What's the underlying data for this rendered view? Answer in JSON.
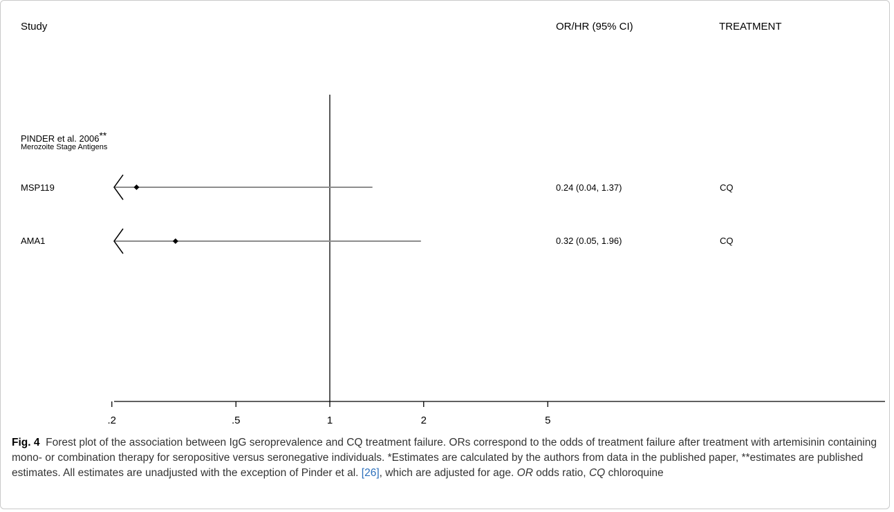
{
  "headers": {
    "study": "Study",
    "estimate": "OR/HR (95% CI)",
    "treatment": "TREATMENT"
  },
  "study_group": {
    "name": "PINDER et al. 2006",
    "mark": "**",
    "subtitle": "Merozoite Stage Antigens"
  },
  "rows": [
    {
      "label": "MSP119",
      "estimate_text": "0.24 (0.04, 1.37)",
      "treatment": "CQ"
    },
    {
      "label": "AMA1",
      "estimate_text": "0.32 (0.05, 1.96)",
      "treatment": "CQ"
    }
  ],
  "chart_data": {
    "type": "forest",
    "x_scale": "log",
    "xticks": [
      0.2,
      0.5,
      1,
      2,
      5
    ],
    "xtick_labels": [
      ".2",
      ".5",
      "1",
      "2",
      "5"
    ],
    "reference_line": 1,
    "series": [
      {
        "label": "MSP119",
        "estimate": 0.24,
        "ci_low": 0.04,
        "ci_high": 1.37,
        "lower_truncated": true
      },
      {
        "label": "AMA1",
        "estimate": 0.32,
        "ci_low": 0.05,
        "ci_high": 1.96,
        "lower_truncated": true
      }
    ],
    "line_color": "#8c8c8c",
    "axis_color": "#000000"
  },
  "caption": {
    "fig_label": "Fig. 4",
    "part1": "Forest plot of the association between IgG seroprevalence and CQ treatment failure. ORs correspond to the odds of treatment failure after treatment with artemisinin containing mono- or combination therapy for seropositive versus seronegative individuals. *Estimates are calculated by the authors from data in the published paper, **estimates are published estimates. All estimates are unadjusted with the exception of Pinder et al.",
    "ref": "[26]",
    "part2": ", which are adjusted for age.",
    "abbr1": "OR",
    "abbr1_text": "odds ratio,",
    "abbr2": "CQ",
    "abbr2_text": "chloroquine"
  }
}
